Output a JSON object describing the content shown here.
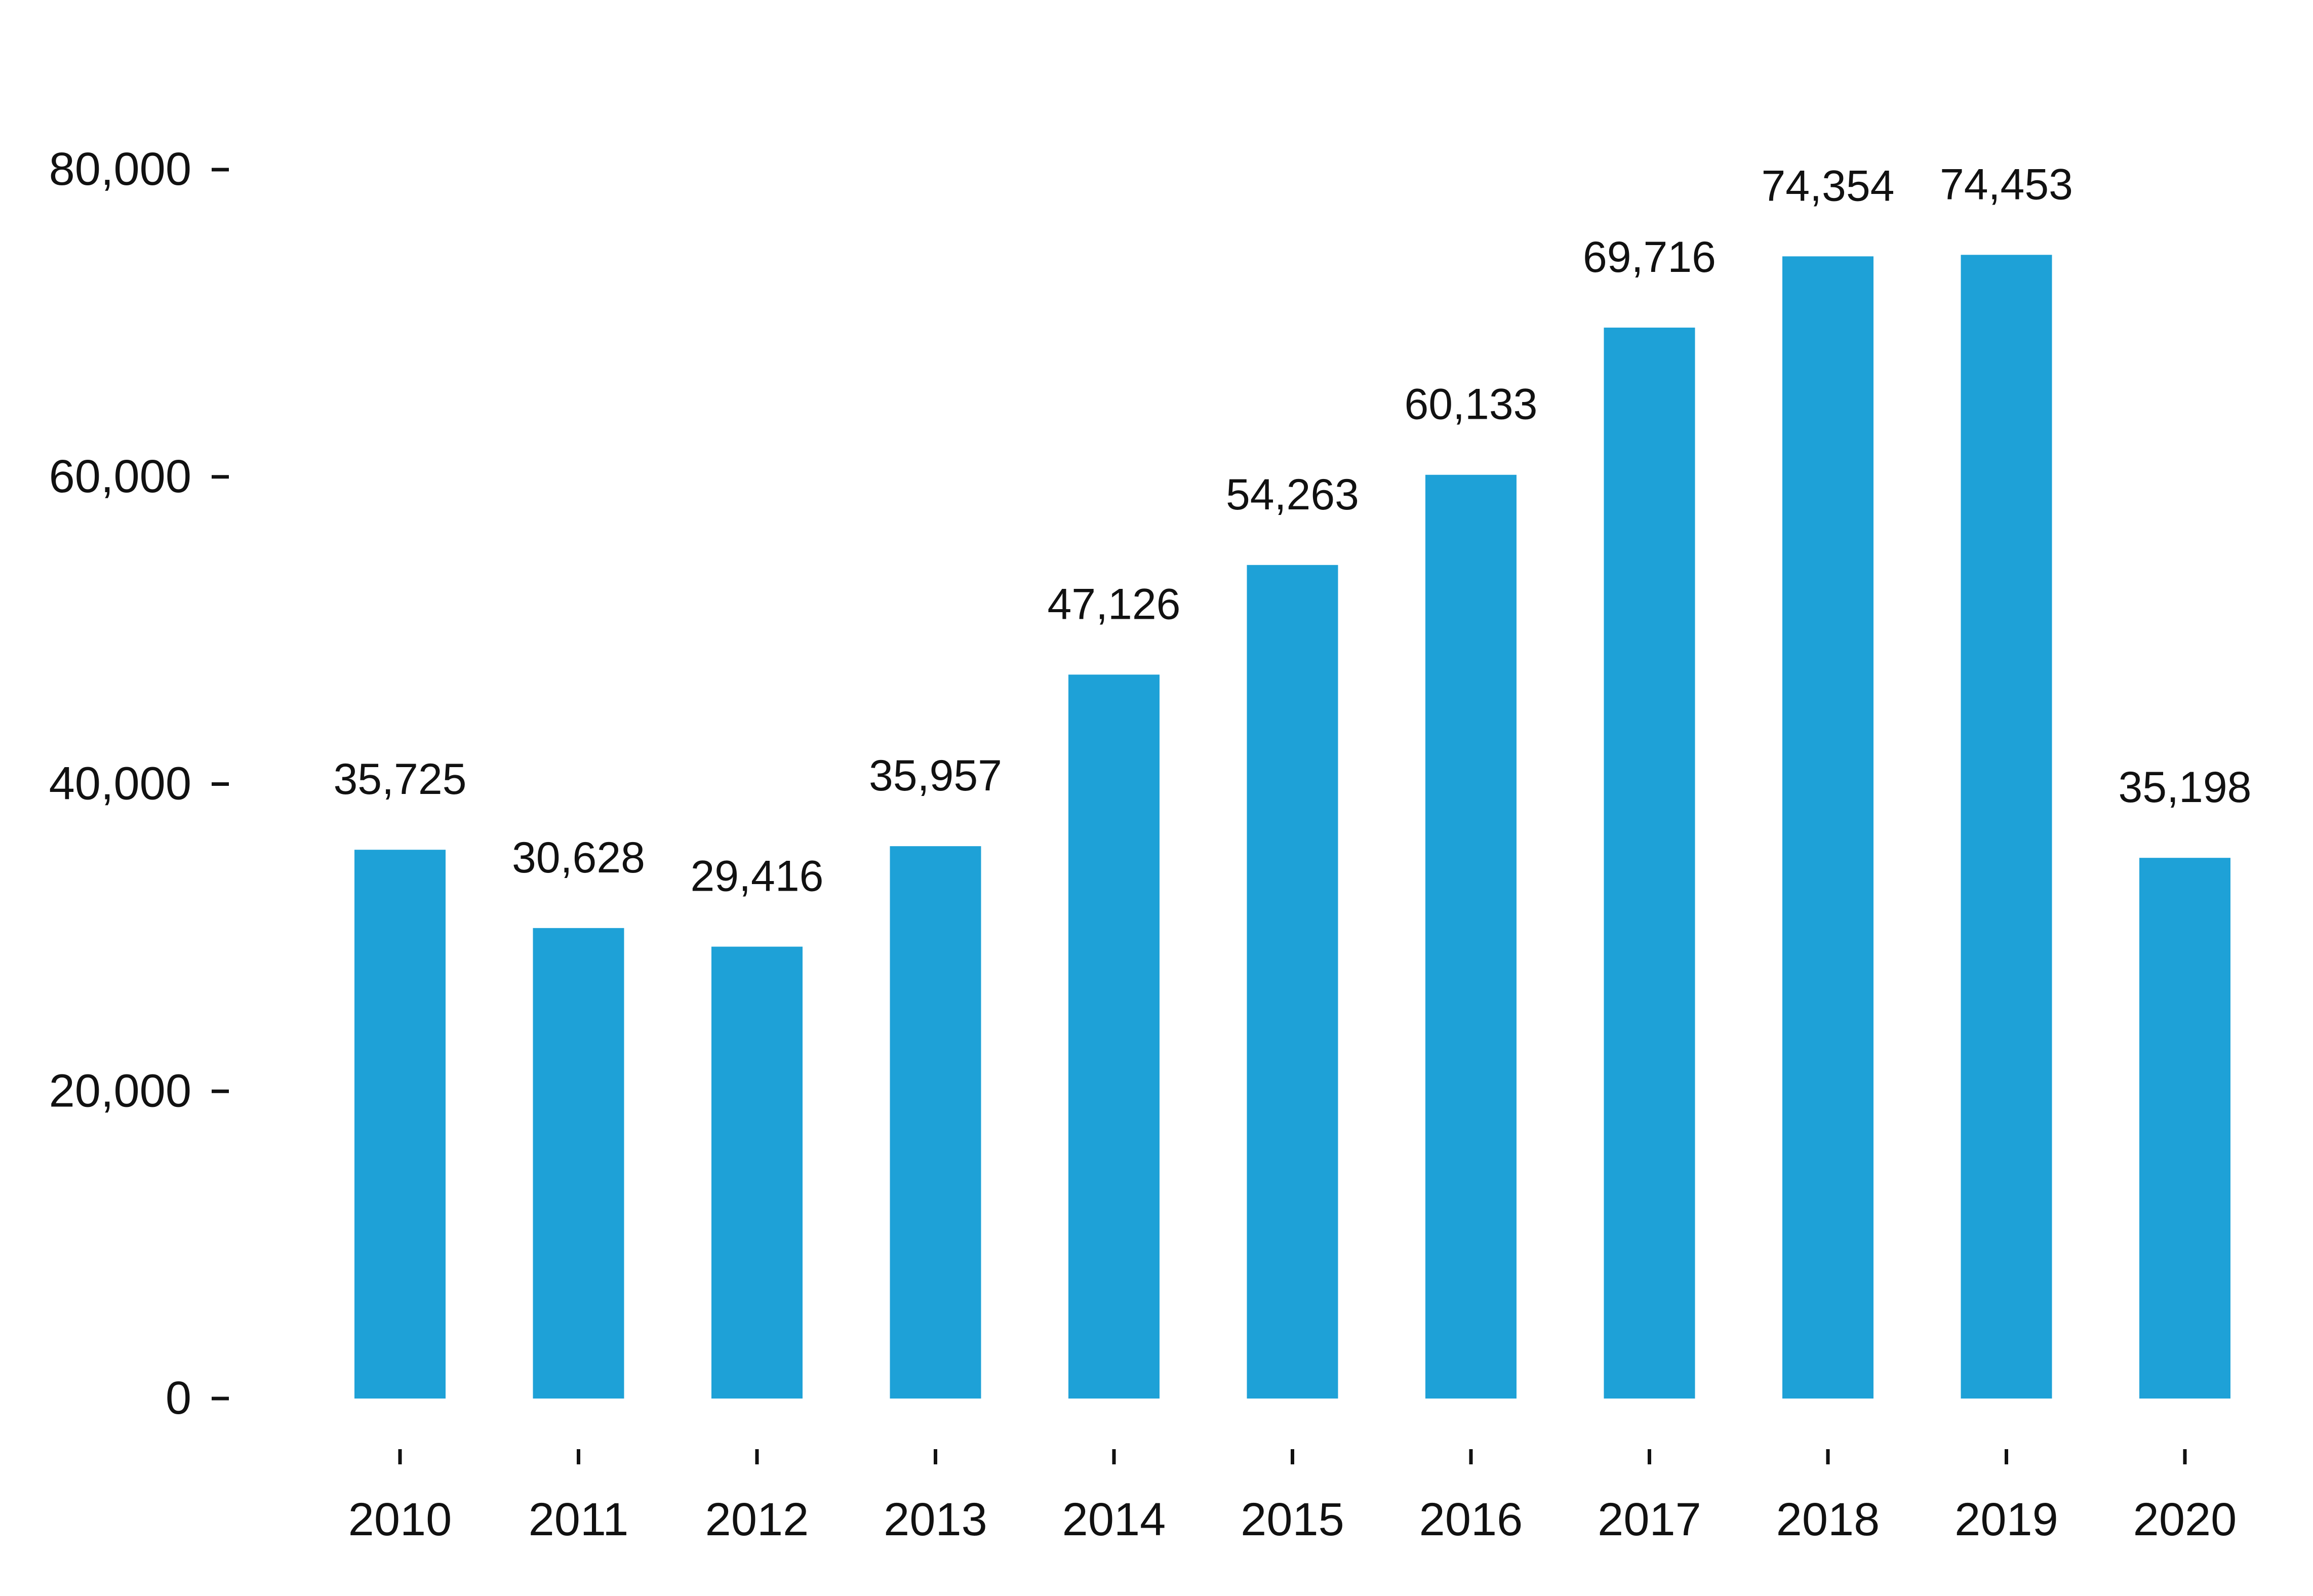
{
  "colors": {
    "bar": "#1EA1D7",
    "text": "#111111",
    "tick": "#111111",
    "background": "#ffffff"
  },
  "chart_data": {
    "type": "bar",
    "title": "",
    "xlabel": "",
    "ylabel": "",
    "categories": [
      "2010",
      "2011",
      "2012",
      "2013",
      "2014",
      "2015",
      "2016",
      "2017",
      "2018",
      "2019",
      "2020"
    ],
    "values": [
      35725,
      30628,
      29416,
      35957,
      47126,
      54263,
      60133,
      69716,
      74354,
      74453,
      35198
    ],
    "value_labels": [
      "35,725",
      "30,628",
      "29,416",
      "35,957",
      "47,126",
      "54,263",
      "60,133",
      "69,716",
      "74,354",
      "74,453",
      "35,198"
    ],
    "yticks": [
      0,
      20000,
      40000,
      60000,
      80000
    ],
    "ytick_labels": [
      "0",
      "20,000",
      "40,000",
      "60,000",
      "80,000"
    ],
    "ylim": [
      0,
      80000
    ],
    "grid": false,
    "legend": "none"
  }
}
